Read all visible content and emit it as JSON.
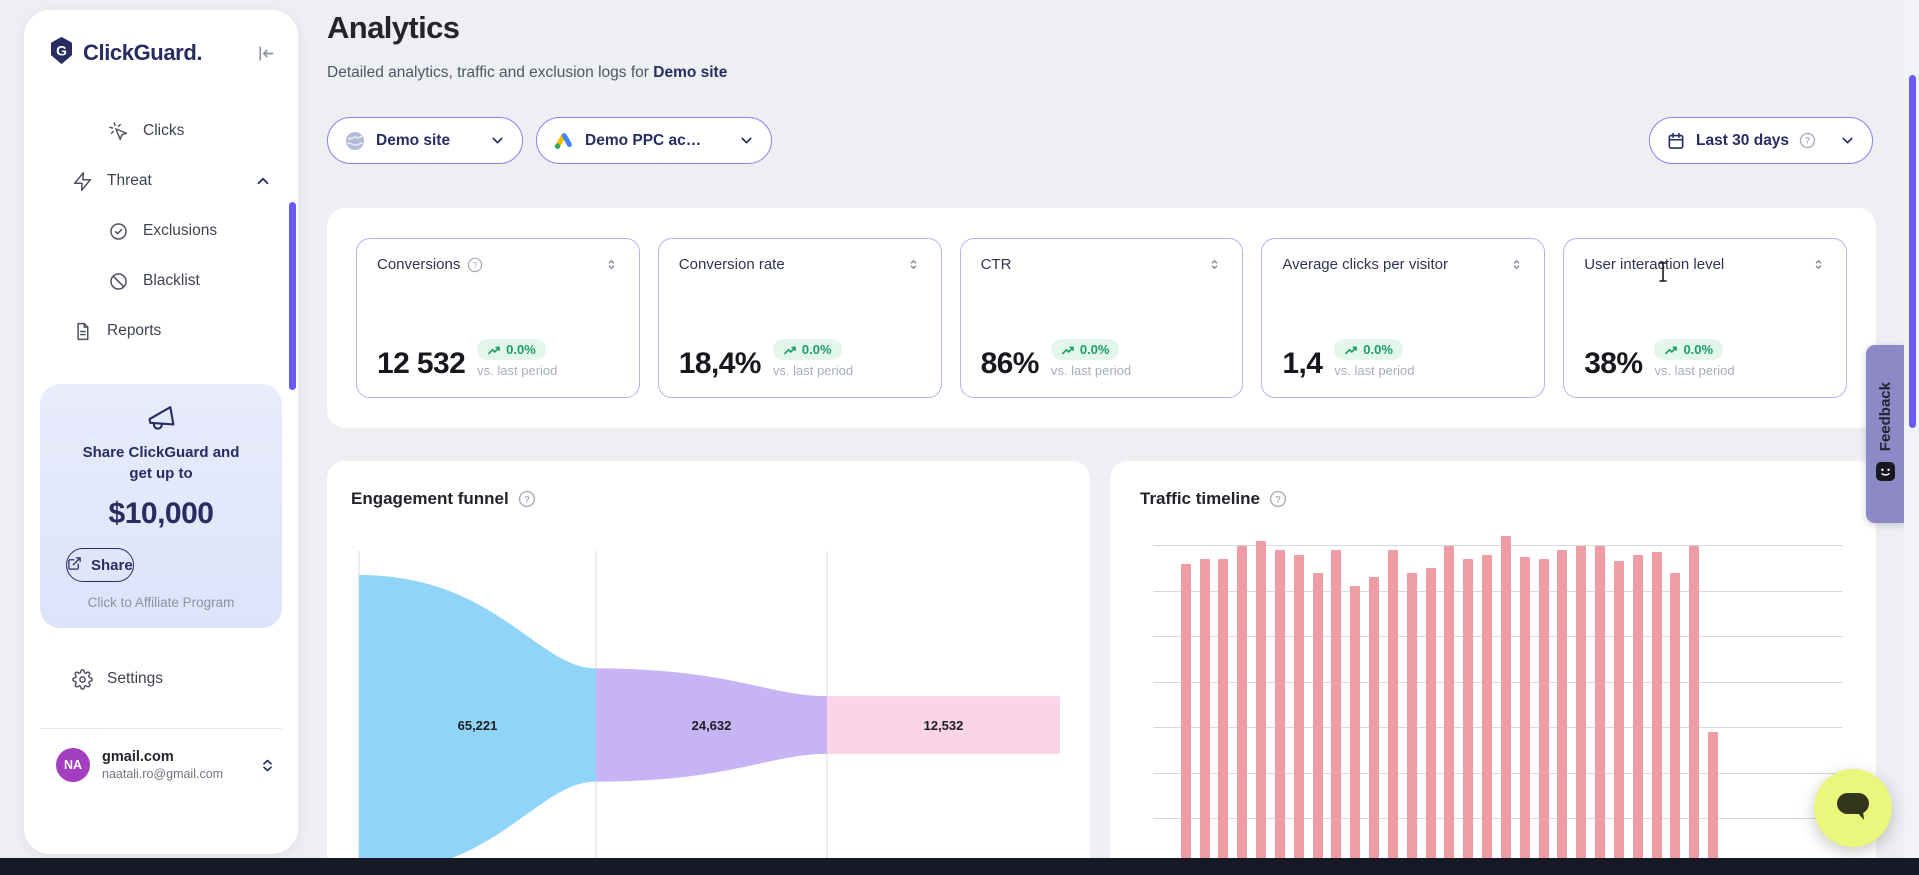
{
  "app": {
    "brand": "ClickGuard."
  },
  "sidebar": {
    "nav": [
      {
        "label": "Clicks",
        "icon": "cursor-click-icon"
      },
      {
        "label": "Threat",
        "icon": "lightning-icon",
        "expanded": true
      },
      {
        "label": "Exclusions",
        "icon": "badge-check-icon"
      },
      {
        "label": "Blacklist",
        "icon": "ban-icon"
      },
      {
        "label": "Reports",
        "icon": "document-icon"
      }
    ],
    "promo": {
      "headline_line1": "Share ClickGuard and",
      "headline_line2": "get up to",
      "amount": "$10,000",
      "share_button": "Share",
      "caption": "Click to Affiliate Program"
    },
    "settings": "Settings",
    "account": {
      "initials": "NA",
      "name": "gmail.com",
      "email": "naatali.ro@gmail.com"
    }
  },
  "header": {
    "title": "Analytics",
    "subtitle_prefix": "Detailed analytics, traffic and exclusion logs for",
    "subtitle_target": "Demo site"
  },
  "filters": {
    "site": "Demo site",
    "account": "Demo PPC ac…",
    "date_range": "Last 30 days"
  },
  "kpi_cards": [
    {
      "label": "Conversions",
      "has_help": true,
      "value": "12 532",
      "delta": "0.0%",
      "compare": "vs. last period"
    },
    {
      "label": "Conversion rate",
      "value": "18,4%",
      "delta": "0.0%",
      "compare": "vs. last period"
    },
    {
      "label": "CTR",
      "value": "86%",
      "delta": "0.0%",
      "compare": "vs. last period"
    },
    {
      "label": "Average clicks per visitor",
      "value": "1,4",
      "delta": "0.0%",
      "compare": "vs. last period"
    },
    {
      "label": "User interaction level",
      "value": "38%",
      "delta": "0.0%",
      "compare": "vs. last period"
    }
  ],
  "panels": {
    "funnel_title": "Engagement funnel",
    "timeline_title": "Traffic timeline"
  },
  "feedback_tab": "Feedback",
  "colors": {
    "accent_purple": "#6a5bf7",
    "pill_border": "#8b80f3",
    "kpi_card_border": "#b7b0f0",
    "badge_green_bg": "#e2f6eb",
    "badge_green_text": "#1c9c6e",
    "navy": "#272d62",
    "bar_salmon": "#ef9da4",
    "promo_bg": "#e3e8fa",
    "feedback_tab_bg": "#8e88c6",
    "chat_button_bg": "#e9f77d",
    "avatar_purple": "#a43ec1"
  },
  "chart_data": [
    {
      "type": "funnel",
      "title": "Engagement funnel",
      "stages": [
        {
          "label": "65,221",
          "value": 65221,
          "color": "#90d5f8"
        },
        {
          "label": "24,632",
          "value": 24632,
          "color": "#c7b4f4"
        },
        {
          "label": "12,532",
          "value": 12532,
          "color": "#fbd4e7"
        }
      ],
      "grid": "vertical stage separators",
      "note": "Sankey-style funnel; widths proportional to values; bottom cropped by viewport"
    },
    {
      "type": "bar",
      "title": "Traffic timeline",
      "x": "daily buckets, last 30 days (x-axis labels below viewport)",
      "values": [
        0.1,
        6.6,
        6.7,
        6.7,
        7.0,
        7.1,
        6.9,
        6.8,
        6.4,
        6.9,
        6.1,
        6.3,
        6.9,
        6.4,
        6.5,
        7.0,
        6.7,
        6.8,
        7.2,
        6.75,
        6.7,
        6.9,
        7.0,
        7.0,
        6.65,
        6.8,
        6.85,
        6.4,
        7.0,
        2.9
      ],
      "value_units": "horizontal-gridline units (y-axis labels cropped; 1 unit = one gridline spacing)",
      "ylim": [
        0,
        7.5
      ],
      "grid": "horizontal",
      "bar_color": "#ef9da4",
      "legend": "none"
    }
  ]
}
